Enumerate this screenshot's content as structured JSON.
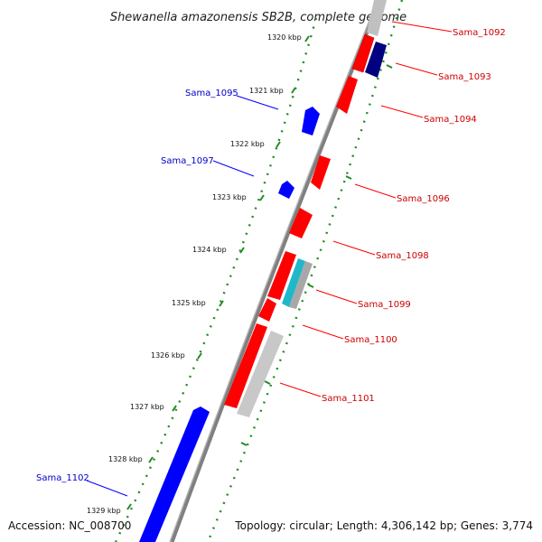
{
  "title": "Shewanella amazonensis SB2B, complete genome",
  "footer": {
    "accession": "Accession: NC_008700",
    "summary": "Topology: circular; Length: 4,306,142 bp; Genes: 3,774"
  },
  "ticks": [
    "1320 kbp",
    "1321 kbp",
    "1322 kbp",
    "1323 kbp",
    "1324 kbp",
    "1325 kbp",
    "1326 kbp",
    "1327 kbp",
    "1328 kbp",
    "1329 kbp"
  ],
  "labels": {
    "sama_1092": "Sama_1092",
    "sama_1093": "Sama_1093",
    "sama_1094": "Sama_1094",
    "sama_1095": "Sama_1095",
    "sama_1096": "Sama_1096",
    "sama_1097": "Sama_1097",
    "sama_1098": "Sama_1098",
    "sama_1099": "Sama_1099",
    "sama_1100": "Sama_1100",
    "sama_1101": "Sama_1101",
    "sama_1102": "Sama_1102"
  },
  "colors": {
    "forward_gene": "#ff0000",
    "reverse_gene": "#0000ff",
    "dark_gene": "#000080",
    "teal_gene": "#20b8c8",
    "gray_feature": "#c0c0c0",
    "backbone": "#808080",
    "tick_green": "#228b22"
  }
}
